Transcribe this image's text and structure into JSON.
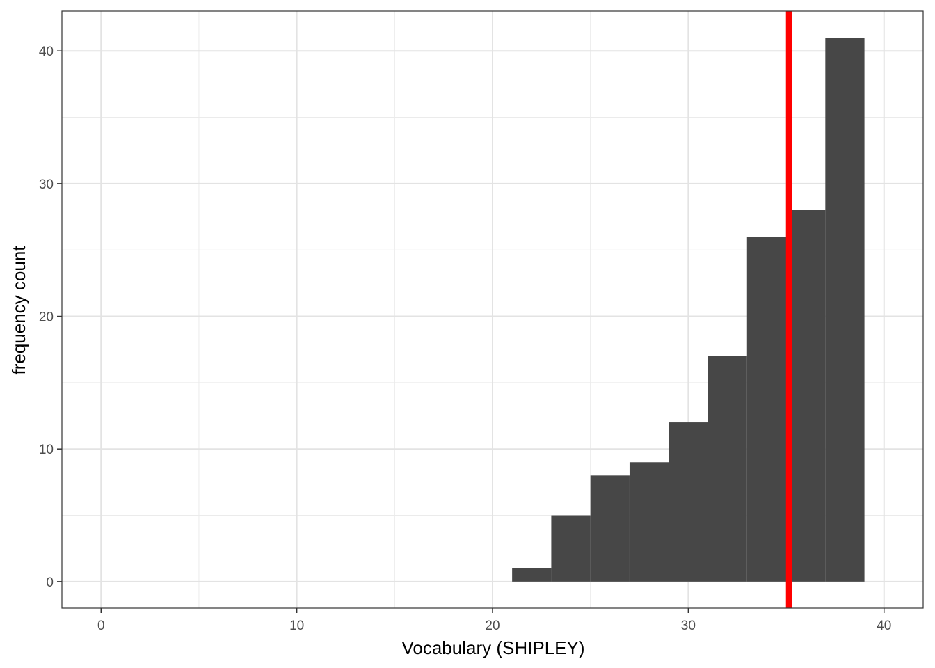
{
  "chart_data": {
    "type": "bar",
    "subtype": "histogram",
    "title": "",
    "xlabel": "Vocabulary (SHIPLEY)",
    "ylabel": "frequency count",
    "xlim": [
      -2,
      42
    ],
    "ylim": [
      -2,
      43
    ],
    "x_ticks": [
      0,
      10,
      20,
      30,
      40
    ],
    "y_ticks": [
      0,
      10,
      20,
      30,
      40
    ],
    "x_minor": [
      5,
      15,
      25,
      35
    ],
    "y_minor": [
      5,
      15,
      25,
      35
    ],
    "bin_width": 2,
    "bins": [
      {
        "x0": 21,
        "x1": 23,
        "count": 1
      },
      {
        "x0": 23,
        "x1": 25,
        "count": 5
      },
      {
        "x0": 25,
        "x1": 27,
        "count": 8
      },
      {
        "x0": 27,
        "x1": 29,
        "count": 9
      },
      {
        "x0": 29,
        "x1": 31,
        "count": 12
      },
      {
        "x0": 31,
        "x1": 33,
        "count": 17
      },
      {
        "x0": 33,
        "x1": 35,
        "count": 26
      },
      {
        "x0": 35,
        "x1": 37,
        "count": 28
      },
      {
        "x0": 37,
        "x1": 39,
        "count": 41
      }
    ],
    "vline": {
      "x": 35.15,
      "color": "#ff0000"
    },
    "bar_color": "#474747",
    "grid": true,
    "legend": "none"
  }
}
